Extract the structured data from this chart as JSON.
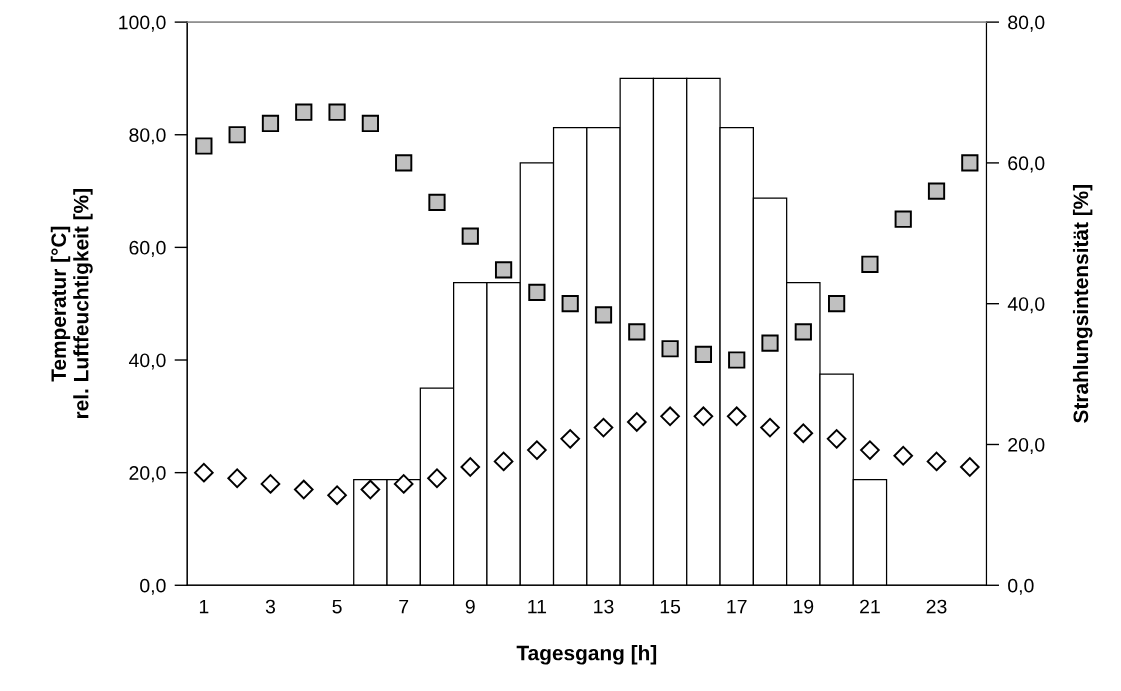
{
  "chart_data": {
    "type": "bar",
    "xlabel": "Tagesgang [h]",
    "ylabel": "Temperatur [°C]\nrel. Luftfeuchtigkeit [%]",
    "y2label": "Strahlungsintensität [%]",
    "categories": [
      "1",
      null,
      "3",
      null,
      "5",
      null,
      "7",
      null,
      "9",
      null,
      "11",
      null,
      "13",
      null,
      "15",
      null,
      "17",
      null,
      "19",
      null,
      "21",
      null,
      "23",
      null
    ],
    "series": [
      {
        "axis": "y2",
        "color": "#ffffff",
        "values": [
          0,
          0,
          0,
          0,
          0,
          15,
          15,
          28,
          43,
          43,
          60,
          65,
          65,
          72,
          72,
          72,
          65,
          55,
          43,
          30,
          15,
          0,
          0,
          0
        ]
      },
      {
        "type": "scatter",
        "marker": "square",
        "color": "#c0c0c0",
        "values": [
          78,
          80,
          82,
          84,
          84,
          82,
          75,
          68,
          62,
          56,
          52,
          50,
          48,
          45,
          42,
          41,
          40,
          43,
          45,
          50,
          57,
          65,
          70,
          75
        ]
      },
      {
        "type": "scatter",
        "marker": "diamond",
        "color": "#ffffff",
        "values": [
          20,
          19,
          18,
          17,
          16,
          17,
          18,
          19,
          21,
          22,
          24,
          26,
          28,
          29,
          30,
          30,
          30,
          28,
          27,
          26,
          24,
          23,
          22,
          21
        ]
      }
    ],
    "ylim": [
      0,
      100
    ],
    "yticks": [
      {
        "value": 0,
        "label": "0,0"
      },
      {
        "value": 20,
        "label": "20,0"
      },
      {
        "value": 40,
        "label": "40,0"
      },
      {
        "value": 60,
        "label": "60,0"
      },
      {
        "value": 80,
        "label": "80,0"
      },
      {
        "value": 100,
        "label": "100,0"
      }
    ],
    "y2lim": [
      0,
      80
    ],
    "y2ticks": [
      {
        "value": 0,
        "label": "0,0"
      },
      {
        "value": 20,
        "label": "20,0"
      },
      {
        "value": 40,
        "label": "40,0"
      },
      {
        "value": 60,
        "label": "60,0"
      },
      {
        "value": 80,
        "label": "80,0"
      }
    ],
    "grid": false
  }
}
